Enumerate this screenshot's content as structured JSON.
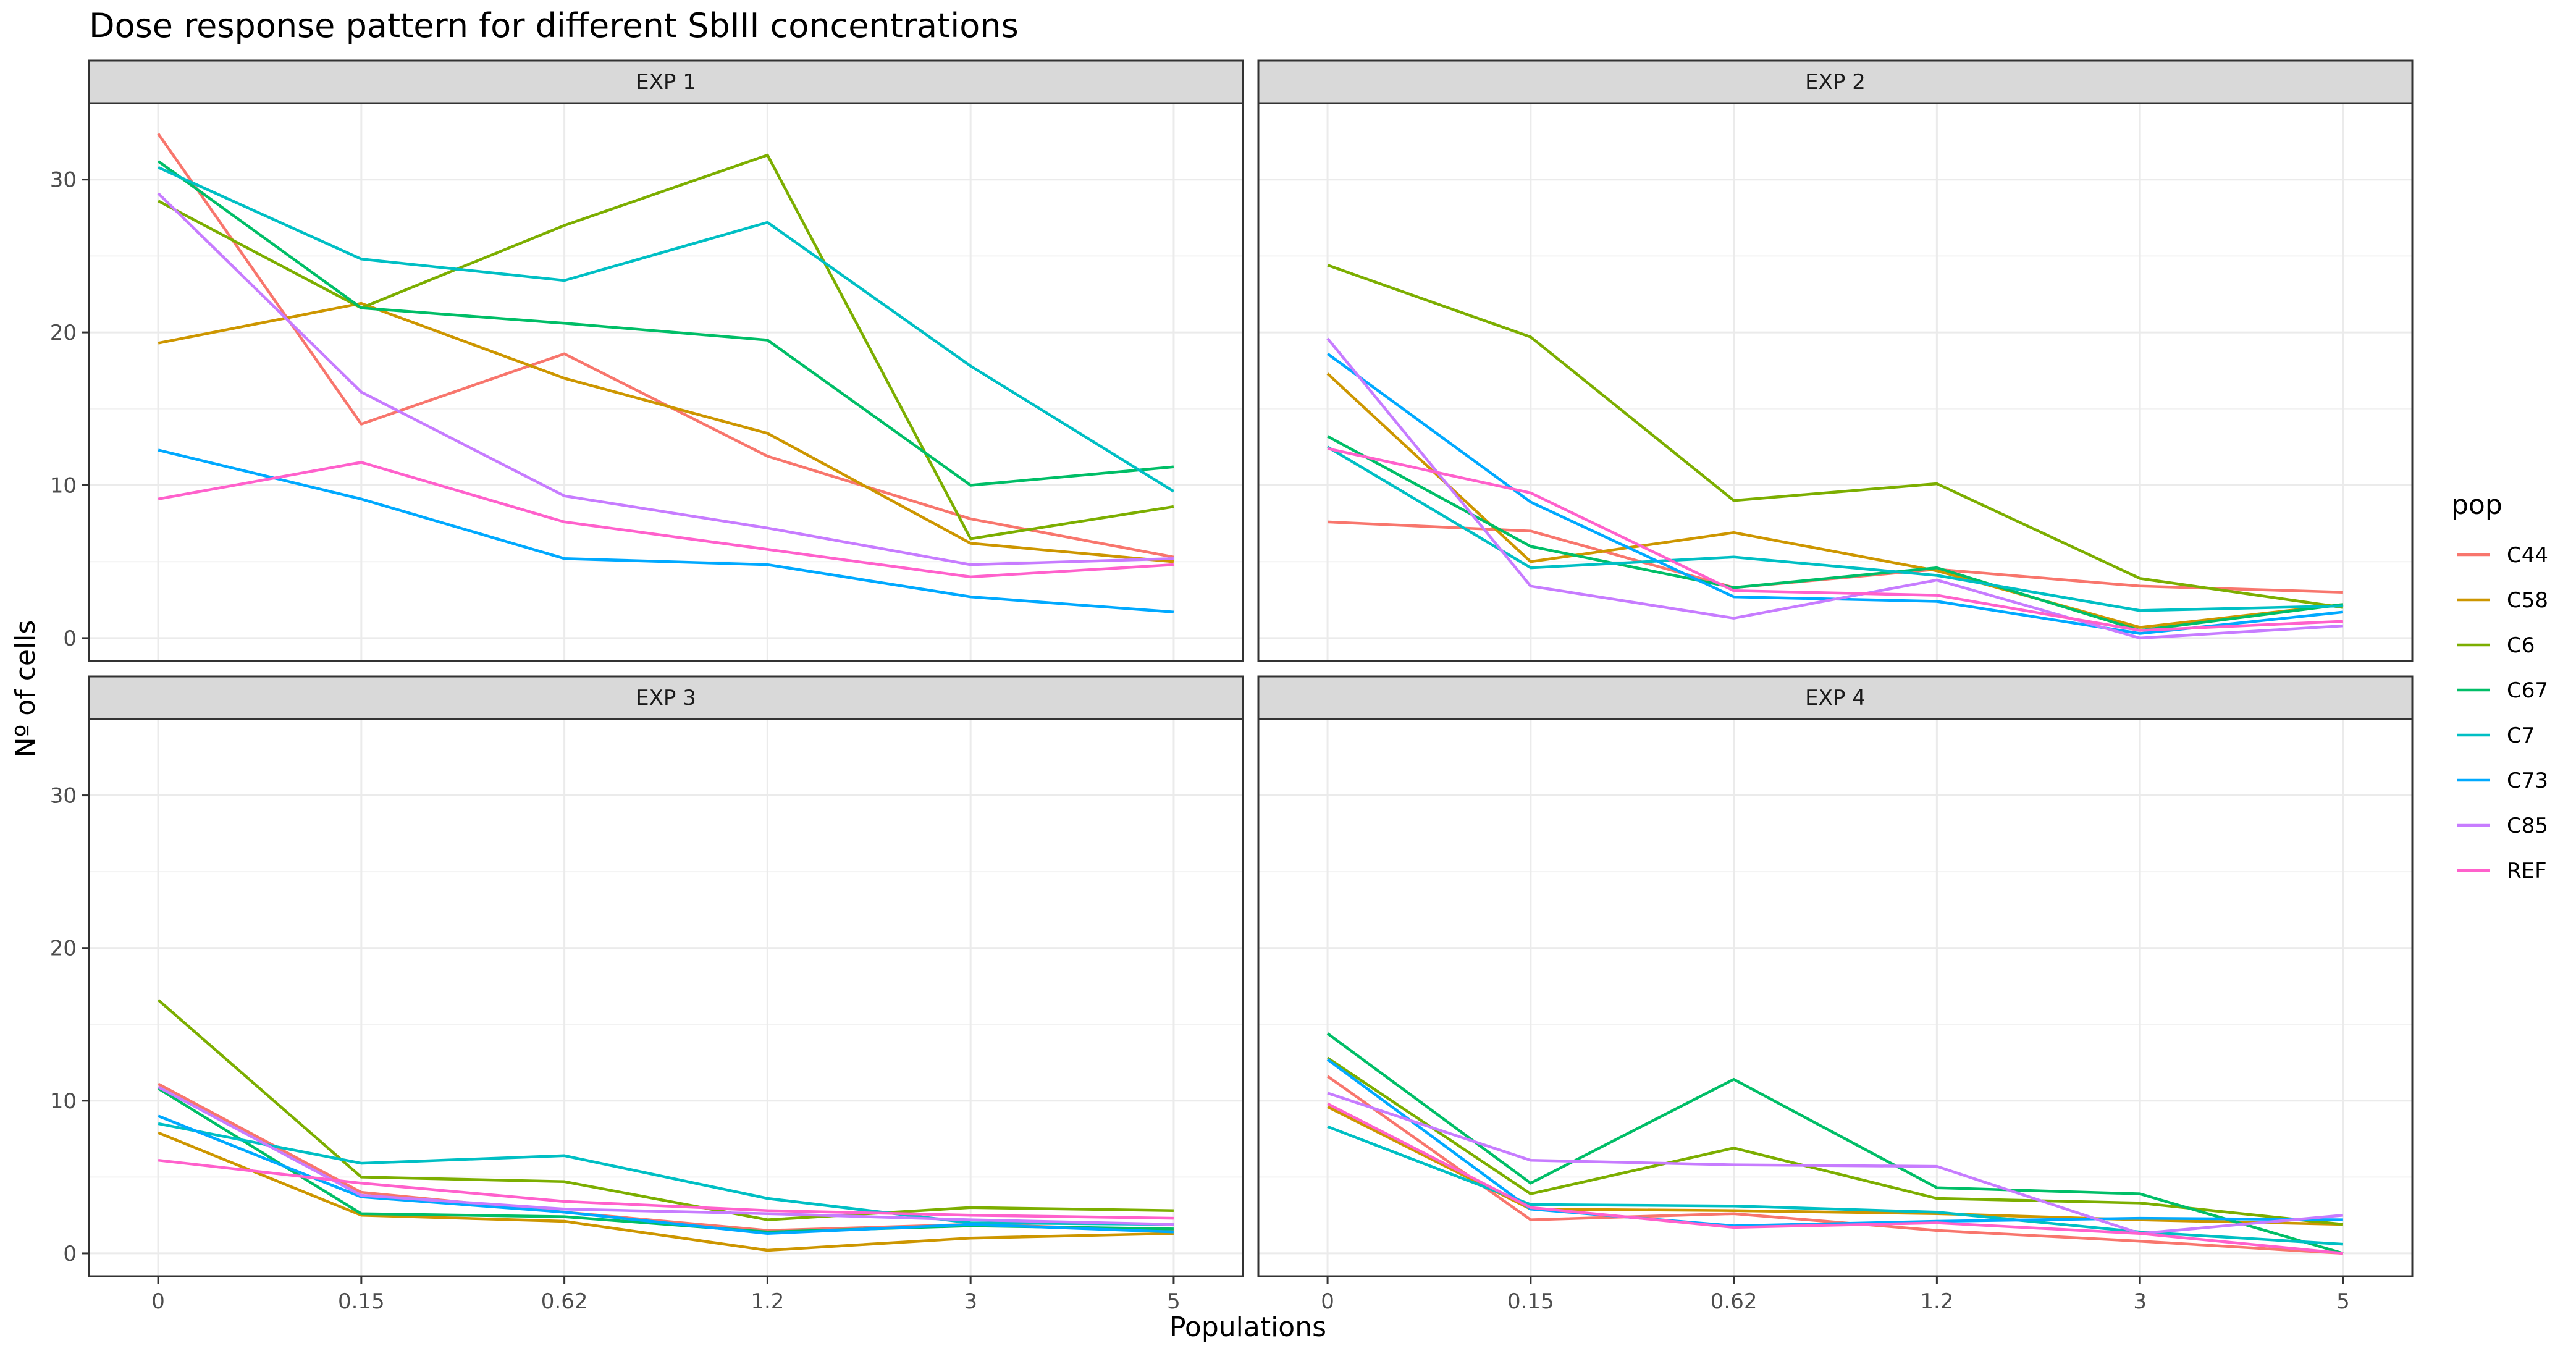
{
  "chart_data": {
    "type": "line",
    "title": "Dose response pattern for different SbIII concentrations",
    "xlabel": "Populations",
    "ylabel": "Nº of cells",
    "categories": [
      "0",
      "0.15",
      "0.62",
      "1.2",
      "3",
      "5"
    ],
    "ylim": [
      -1.5,
      35
    ],
    "yticks": [
      0,
      10,
      20,
      30
    ],
    "grid": true,
    "legend": {
      "title": "pop",
      "position": "right",
      "entries": [
        "C44",
        "C58",
        "C6",
        "C67",
        "C7",
        "C73",
        "C85",
        "REF"
      ]
    },
    "colors": {
      "C44": "#F8766D",
      "C58": "#CD9600",
      "C6": "#7CAE00",
      "C67": "#00BE67",
      "C7": "#00BFC4",
      "C73": "#00A9FF",
      "C85": "#C77CFF",
      "REF": "#FF61CC"
    },
    "panels": [
      {
        "label": "EXP 1",
        "series": [
          {
            "name": "C44",
            "values": [
              33.0,
              14.0,
              18.6,
              11.9,
              7.8,
              5.3
            ]
          },
          {
            "name": "C58",
            "values": [
              19.3,
              21.9,
              17.0,
              13.4,
              6.2,
              5.0
            ]
          },
          {
            "name": "C6",
            "values": [
              28.6,
              21.6,
              27.0,
              31.6,
              6.5,
              8.6
            ]
          },
          {
            "name": "C67",
            "values": [
              31.2,
              21.6,
              20.6,
              19.5,
              10.0,
              11.2
            ]
          },
          {
            "name": "C7",
            "values": [
              30.8,
              24.8,
              23.4,
              27.2,
              17.8,
              9.6
            ]
          },
          {
            "name": "C73",
            "values": [
              12.3,
              9.1,
              5.2,
              4.8,
              2.7,
              1.7
            ]
          },
          {
            "name": "C85",
            "values": [
              29.1,
              16.1,
              9.3,
              7.2,
              4.8,
              5.2
            ]
          },
          {
            "name": "REF",
            "values": [
              9.1,
              11.5,
              7.6,
              5.8,
              4.0,
              4.8
            ]
          }
        ]
      },
      {
        "label": "EXP 2",
        "series": [
          {
            "name": "C44",
            "values": [
              7.6,
              7.0,
              3.3,
              4.5,
              3.4,
              3.0
            ]
          },
          {
            "name": "C58",
            "values": [
              17.3,
              5.0,
              6.9,
              4.4,
              0.7,
              2.2
            ]
          },
          {
            "name": "C6",
            "values": [
              24.4,
              19.7,
              9.0,
              10.1,
              3.9,
              2.0
            ]
          },
          {
            "name": "C67",
            "values": [
              13.2,
              6.0,
              3.3,
              4.6,
              0.5,
              2.2
            ]
          },
          {
            "name": "C7",
            "values": [
              12.5,
              4.6,
              5.3,
              4.1,
              1.8,
              2.1
            ]
          },
          {
            "name": "C73",
            "values": [
              18.6,
              8.9,
              2.7,
              2.4,
              0.3,
              1.7
            ]
          },
          {
            "name": "C85",
            "values": [
              19.6,
              3.4,
              1.3,
              3.8,
              0.0,
              0.8
            ]
          },
          {
            "name": "REF",
            "values": [
              12.4,
              9.5,
              3.1,
              2.8,
              0.5,
              1.1
            ]
          }
        ]
      },
      {
        "label": "EXP 3",
        "series": [
          {
            "name": "C44",
            "values": [
              11.1,
              4.0,
              2.7,
              1.5,
              1.9,
              1.5
            ]
          },
          {
            "name": "C58",
            "values": [
              7.9,
              2.5,
              2.1,
              0.2,
              1.0,
              1.3
            ]
          },
          {
            "name": "C6",
            "values": [
              16.6,
              5.0,
              4.7,
              2.2,
              3.0,
              2.8
            ]
          },
          {
            "name": "C67",
            "values": [
              10.8,
              2.6,
              2.4,
              1.4,
              1.8,
              1.6
            ]
          },
          {
            "name": "C7",
            "values": [
              8.5,
              5.9,
              6.4,
              3.6,
              2.0,
              1.9
            ]
          },
          {
            "name": "C73",
            "values": [
              9.0,
              3.7,
              2.7,
              1.3,
              1.9,
              1.4
            ]
          },
          {
            "name": "C85",
            "values": [
              10.9,
              3.8,
              2.9,
              2.6,
              2.2,
              1.9
            ]
          },
          {
            "name": "REF",
            "values": [
              6.1,
              4.6,
              3.4,
              2.8,
              2.5,
              2.3
            ]
          }
        ]
      },
      {
        "label": "EXP 4",
        "series": [
          {
            "name": "C44",
            "values": [
              11.6,
              2.2,
              2.6,
              1.5,
              0.8,
              0.0
            ]
          },
          {
            "name": "C58",
            "values": [
              9.6,
              2.9,
              2.8,
              2.6,
              2.2,
              1.9
            ]
          },
          {
            "name": "C6",
            "values": [
              12.8,
              3.9,
              6.9,
              3.6,
              3.3,
              1.9
            ]
          },
          {
            "name": "C67",
            "values": [
              14.4,
              4.6,
              11.4,
              4.3,
              3.9,
              0.0
            ]
          },
          {
            "name": "C7",
            "values": [
              8.3,
              3.2,
              3.1,
              2.7,
              1.4,
              0.6
            ]
          },
          {
            "name": "C73",
            "values": [
              12.7,
              2.9,
              1.8,
              2.1,
              2.3,
              2.2
            ]
          },
          {
            "name": "C85",
            "values": [
              10.5,
              6.1,
              5.8,
              5.7,
              1.3,
              2.5
            ]
          },
          {
            "name": "REF",
            "values": [
              9.8,
              3.0,
              1.7,
              2.0,
              1.3,
              0.0
            ]
          }
        ]
      }
    ]
  }
}
